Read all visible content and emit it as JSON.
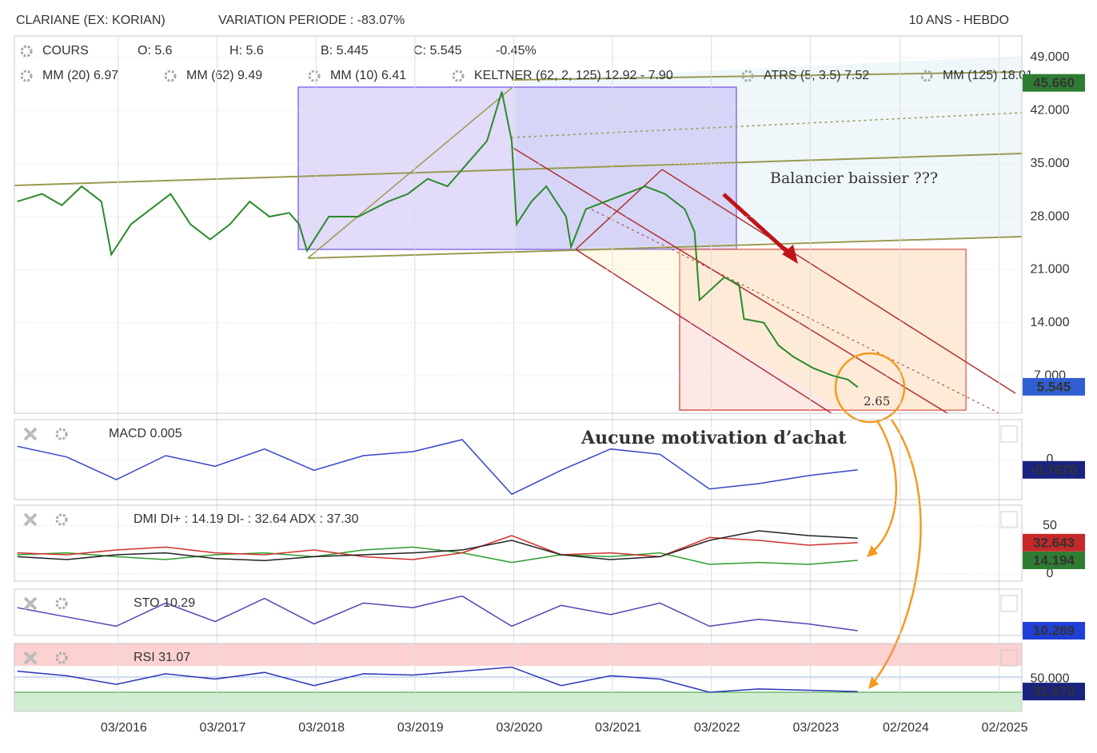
{
  "header": {
    "title": "CLARIANE (EX: KORIAN)",
    "variation": "VARIATION PERIODE : -83.07%",
    "period": "10 ANS - HEBDO",
    "legend": [
      "O: 5.6",
      "H: 5.6",
      "B: 5.445",
      "C: 5.545",
      "-0.45%"
    ],
    "indicators": [
      {
        "text": "MM (20) 6.97",
        "color": "#d0021b"
      },
      {
        "text": "MM (62) 9.49",
        "color": "#f5a623"
      },
      {
        "text": "MM (10) 6.41",
        "color": "#3fc1c9"
      },
      {
        "text": "KELTNER (62, 2, 125) 12.92 - 7.90",
        "color": "#1a7f1a"
      },
      {
        "text": "ATRS (5, 3.5) 7.52",
        "color": "#f5a623"
      },
      {
        "text": "MM (125) 18.01",
        "color": "#2db82d"
      }
    ]
  },
  "chart_data": [
    {
      "type": "line",
      "annotations": [
        "Balancier baissier ???",
        "Aucune motivation d’achat",
        "2.65"
      ],
      "x": [
        2015.15,
        2015.4,
        2015.6,
        2015.8,
        2016.0,
        2016.1,
        2016.3,
        2016.5,
        2016.7,
        2016.9,
        2017.1,
        2017.3,
        2017.5,
        2017.7,
        2017.9,
        2018.0,
        2018.08,
        2018.3,
        2018.6,
        2018.9,
        2019.1,
        2019.3,
        2019.5,
        2019.7,
        2019.9,
        2020.05,
        2020.15,
        2020.2,
        2020.35,
        2020.5,
        2020.7,
        2020.75,
        2020.9,
        2021.1,
        2021.3,
        2021.5,
        2021.7,
        2021.9,
        2022.0,
        2022.05,
        2022.3,
        2022.45,
        2022.5,
        2022.7,
        2022.85,
        2023.0,
        2023.2,
        2023.4,
        2023.55,
        2023.65
      ],
      "series": [
        {
          "name": "COURS",
          "color": "#2a8a2a",
          "values": [
            30,
            31,
            29.5,
            32,
            30,
            23,
            27,
            29,
            31,
            27,
            25,
            27,
            30,
            28,
            28.5,
            27,
            23.5,
            28,
            28,
            30,
            31,
            33,
            32,
            35,
            38,
            44.5,
            38,
            27,
            30,
            32,
            28,
            24,
            29,
            30,
            31,
            32,
            31,
            29,
            26,
            17,
            20,
            19,
            14.5,
            14,
            11,
            9.5,
            8,
            7,
            6.5,
            5.5
          ]
        }
      ],
      "xlim": [
        2015.12,
        2025.31
      ],
      "ylim": [
        2.05,
        51.85
      ],
      "xticks": [
        {
          "value": 2016.17,
          "label": "03/2016"
        },
        {
          "value": 2017.17,
          "label": "03/2017"
        },
        {
          "value": 2018.17,
          "label": "03/2018"
        },
        {
          "value": 2019.17,
          "label": "03/2019"
        },
        {
          "value": 2020.17,
          "label": "03/2020"
        },
        {
          "value": 2021.17,
          "label": "03/2021"
        },
        {
          "value": 2022.17,
          "label": "03/2022"
        },
        {
          "value": 2023.17,
          "label": "03/2023"
        },
        {
          "value": 2024.08,
          "label": "02/2024"
        },
        {
          "value": 2025.08,
          "label": "02/2025"
        }
      ],
      "yticks": [
        {
          "value": 7,
          "label": "7.000"
        },
        {
          "value": 14,
          "label": "14.000"
        },
        {
          "value": 21,
          "label": "21.000"
        },
        {
          "value": 28,
          "label": "28.000"
        },
        {
          "value": 35,
          "label": "35.000"
        },
        {
          "value": 42,
          "label": "42.000"
        },
        {
          "value": 49,
          "label": "49.000"
        }
      ],
      "badges": [
        {
          "value": 45.66,
          "label": "45.660",
          "color": "#2e7d32"
        },
        {
          "value": 5.545,
          "label": "5.545",
          "color": "#2f5fd0"
        }
      ]
    },
    {
      "type": "line",
      "label": "MACD 0.005",
      "x": [
        2015.15,
        2015.65,
        2016.15,
        2016.65,
        2017.15,
        2017.65,
        2018.15,
        2018.65,
        2019.15,
        2019.65,
        2020.15,
        2020.65,
        2021.15,
        2021.65,
        2022.15,
        2022.65,
        2023.15,
        2023.65
      ],
      "series": [
        {
          "color": "#3446c8",
          "values": [
            1.0,
            0.2,
            -1.5,
            0.3,
            -0.5,
            0.8,
            -0.8,
            0.3,
            0.6,
            1.5,
            -2.6,
            -0.8,
            0.8,
            0.4,
            -2.2,
            -1.8,
            -1.2,
            -0.77
          ]
        }
      ],
      "xlim": [
        2015.12,
        2025.31
      ],
      "ylim": [
        -3,
        3
      ],
      "yticks": [
        0
      ],
      "badges": [
        {
          "value": -0.767,
          "label": "-0.7670",
          "color": "#1a237e"
        }
      ]
    },
    {
      "type": "line",
      "label": "DMI DI+ : 14.19 DI- : 32.64 ADX : 37.30",
      "x": [
        2015.15,
        2015.65,
        2016.15,
        2016.65,
        2017.15,
        2017.65,
        2018.15,
        2018.65,
        2019.15,
        2019.65,
        2020.15,
        2020.65,
        2021.15,
        2021.65,
        2022.15,
        2022.65,
        2023.15,
        2023.65
      ],
      "series": [
        {
          "color": "#2e9e2e",
          "values": [
            20,
            22,
            18,
            15,
            20,
            22,
            18,
            25,
            28,
            22,
            12,
            20,
            18,
            22,
            10,
            12,
            10,
            14.19
          ]
        },
        {
          "color": "#d0312d",
          "values": [
            22,
            20,
            25,
            28,
            22,
            20,
            25,
            18,
            15,
            22,
            40,
            20,
            22,
            18,
            38,
            35,
            30,
            32.64
          ]
        },
        {
          "color": "#222222",
          "values": [
            18,
            15,
            20,
            22,
            16,
            14,
            18,
            20,
            22,
            25,
            35,
            20,
            15,
            18,
            35,
            45,
            40,
            37.3
          ]
        }
      ],
      "xlim": [
        2015.12,
        2025.31
      ],
      "ylim": [
        -7.5,
        71.7
      ],
      "yticks": [
        0,
        50
      ],
      "badges": [
        {
          "value": 32.643,
          "label": "32.643",
          "color": "#c62828"
        },
        {
          "value": 14.194,
          "label": "14.194",
          "color": "#2e7d32"
        }
      ]
    },
    {
      "type": "line",
      "label": "STO 10.29",
      "x": [
        2015.15,
        2015.65,
        2016.15,
        2016.65,
        2017.15,
        2017.65,
        2018.15,
        2018.65,
        2019.15,
        2019.65,
        2020.15,
        2020.65,
        2021.15,
        2021.65,
        2022.15,
        2022.65,
        2023.15,
        2023.65
      ],
      "series": [
        {
          "color": "#5b3fb5",
          "values": [
            60,
            40,
            20,
            70,
            30,
            80,
            25,
            70,
            60,
            85,
            20,
            65,
            45,
            70,
            20,
            35,
            25,
            10.29
          ]
        }
      ],
      "xlim": [
        2015.12,
        2025.31
      ],
      "ylim": [
        0,
        100
      ],
      "yticks": [],
      "badges": [
        {
          "value": 10.289,
          "label": "10.289",
          "color": "#1f3fd8"
        }
      ]
    },
    {
      "type": "line",
      "label": "RSI 31.07",
      "x": [
        2015.15,
        2015.65,
        2016.15,
        2016.65,
        2017.15,
        2017.65,
        2018.15,
        2018.65,
        2019.15,
        2019.65,
        2020.15,
        2020.65,
        2021.15,
        2021.65,
        2022.15,
        2022.65,
        2023.15,
        2023.65
      ],
      "series": [
        {
          "color": "#2a34b8",
          "values": [
            62,
            55,
            42,
            58,
            50,
            60,
            40,
            58,
            56,
            62,
            68,
            40,
            55,
            50,
            30,
            35,
            33,
            31.07
          ]
        }
      ],
      "xlim": [
        2015.12,
        2025.31
      ],
      "ylim": [
        0.9,
        103.9
      ],
      "yticks": [
        {
          "value": 50,
          "label": "50.000"
        }
      ],
      "badges": [
        {
          "value": 31.07,
          "label": "31.070",
          "color": "#1a237e"
        }
      ]
    }
  ]
}
